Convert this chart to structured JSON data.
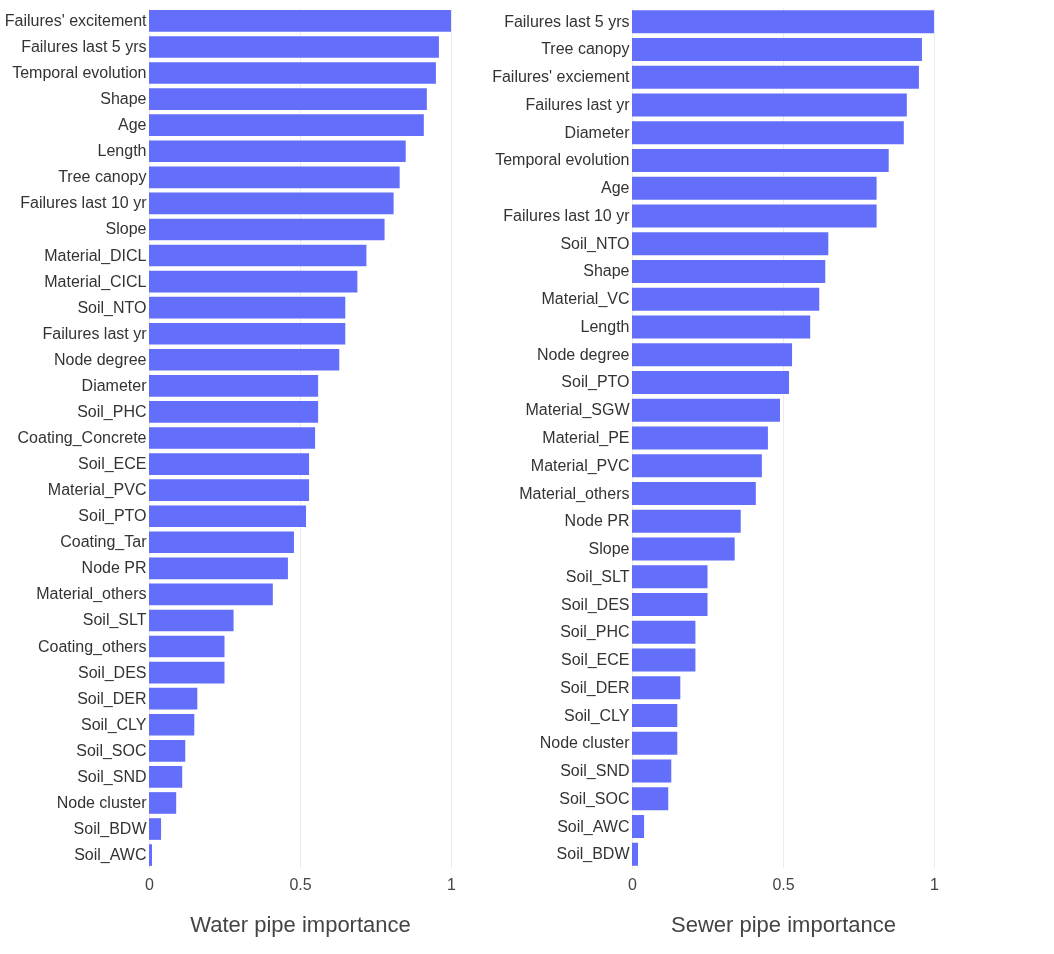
{
  "chart_data": [
    {
      "type": "bar",
      "orientation": "horizontal",
      "xlabel": "Water pipe importance",
      "color": "#636efa",
      "xlim": [
        0,
        1
      ],
      "xticks": [
        0,
        0.5,
        1
      ],
      "grid": "x",
      "categories": [
        "Failures' excitement",
        "Failures last 5 yrs",
        "Temporal evolution",
        "Shape",
        "Age",
        "Length",
        "Tree canopy",
        "Failures last 10 yr",
        "Slope",
        "Material_DICL",
        "Material_CICL",
        "Soil_NTO",
        "Failures last yr",
        "Node degree",
        "Diameter",
        "Soil_PHC",
        "Coating_Concrete",
        "Soil_ECE",
        "Material_PVC",
        "Soil_PTO",
        "Coating_Tar",
        "Node PR",
        "Material_others",
        "Soil_SLT",
        "Coating_others",
        "Soil_DES",
        "Soil_DER",
        "Soil_CLY",
        "Soil_SOC",
        "Soil_SND",
        "Node cluster",
        "Soil_BDW",
        "Soil_AWC"
      ],
      "values": [
        1.0,
        0.96,
        0.95,
        0.92,
        0.91,
        0.85,
        0.83,
        0.81,
        0.78,
        0.72,
        0.69,
        0.65,
        0.65,
        0.63,
        0.56,
        0.56,
        0.55,
        0.53,
        0.53,
        0.52,
        0.48,
        0.46,
        0.41,
        0.28,
        0.25,
        0.25,
        0.16,
        0.15,
        0.12,
        0.11,
        0.09,
        0.04,
        0.01
      ]
    },
    {
      "type": "bar",
      "orientation": "horizontal",
      "xlabel": "Sewer pipe importance",
      "color": "#636efa",
      "xlim": [
        0,
        1
      ],
      "xticks": [
        0,
        0.5,
        1
      ],
      "grid": "x",
      "categories": [
        "Failures last 5 yrs",
        "Tree canopy",
        "Failures' exciement",
        "Failures last yr",
        "Diameter",
        "Temporal evolution",
        "Age",
        "Failures last 10 yr",
        "Soil_NTO",
        "Shape",
        "Material_VC",
        "Length",
        "Node degree",
        "Soil_PTO",
        "Material_SGW",
        "Material_PE",
        "Material_PVC",
        "Material_others",
        "Node PR",
        "Slope",
        "Soil_SLT",
        "Soil_DES",
        "Soil_PHC",
        "Soil_ECE",
        "Soil_DER",
        "Soil_CLY",
        "Node cluster",
        "Soil_SND",
        "Soil_SOC",
        "Soil_AWC",
        "Soil_BDW"
      ],
      "values": [
        1.0,
        0.96,
        0.95,
        0.91,
        0.9,
        0.85,
        0.81,
        0.81,
        0.65,
        0.64,
        0.62,
        0.59,
        0.53,
        0.52,
        0.49,
        0.45,
        0.43,
        0.41,
        0.36,
        0.34,
        0.25,
        0.25,
        0.21,
        0.21,
        0.16,
        0.15,
        0.15,
        0.13,
        0.12,
        0.04,
        0.02
      ]
    }
  ]
}
